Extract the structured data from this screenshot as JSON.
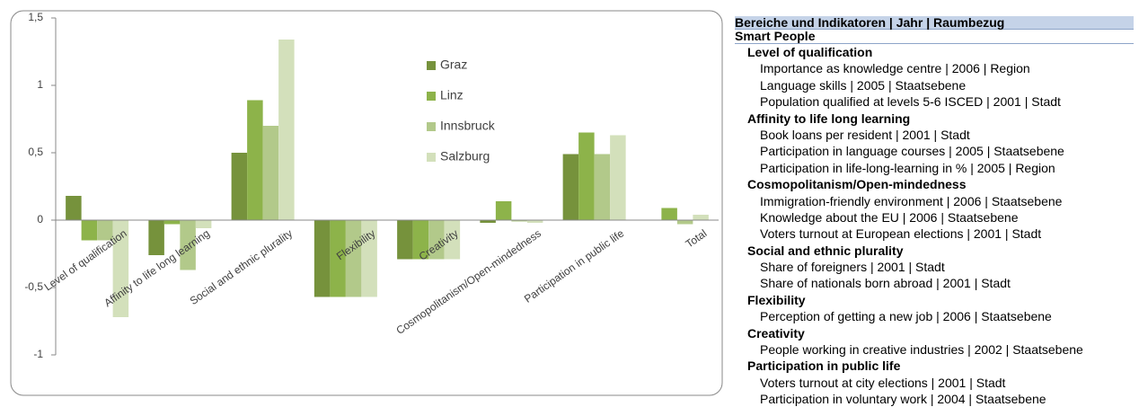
{
  "chart_data": {
    "type": "bar",
    "categories": [
      "Level of qualification",
      "Affinity to life long learning",
      "Social and ethnic plurality",
      "Flexibility",
      "Creativity",
      "Cosmopolitanism/Open-mindedness",
      "Participation in public life",
      "Total"
    ],
    "series": [
      {
        "name": "Graz",
        "color": "#76923c",
        "values": [
          0.18,
          -0.26,
          0.5,
          -0.57,
          -0.29,
          -0.02,
          0.49,
          0
        ]
      },
      {
        "name": "Linz",
        "color": "#8db34a",
        "values": [
          -0.15,
          -0.03,
          0.89,
          -0.57,
          -0.29,
          0.14,
          0.65,
          0.09
        ]
      },
      {
        "name": "Innsbruck",
        "color": "#b2c98a",
        "values": [
          -0.15,
          -0.37,
          0.7,
          -0.57,
          -0.29,
          -0.01,
          0.49,
          -0.03
        ]
      },
      {
        "name": "Salzburg",
        "color": "#d3e0bb",
        "values": [
          -0.72,
          -0.06,
          1.34,
          -0.57,
          -0.29,
          -0.02,
          0.63,
          0.04
        ]
      }
    ],
    "ylim": [
      -1,
      1.5
    ],
    "yticks": [
      {
        "value": -1,
        "label": "-1"
      },
      {
        "value": -0.5,
        "label": "-0,5"
      },
      0,
      {
        "value": 0.5,
        "label": "0,5"
      },
      1,
      {
        "value": 1.5,
        "label": "1,5"
      }
    ],
    "grid": false,
    "legend": "inside"
  },
  "sidebar": {
    "header": "Bereiche und Indikatoren | Jahr | Raumbezug",
    "section": "Smart People",
    "groups": [
      {
        "title": "Level of qualification",
        "items": [
          "Importance as knowledge centre | 2006 | Region",
          "Language skills | 2005 | Staatsebene",
          "Population qualified at levels 5-6 ISCED | 2001 | Stadt"
        ]
      },
      {
        "title": "Affinity to life long learning",
        "items": [
          "Book loans per resident | 2001 | Stadt",
          "Participation in language courses | 2005 | Staatsebene",
          "Participation in life-long-learning in % | 2005 | Region"
        ]
      },
      {
        "title": "Cosmopolitanism/Open-mindedness",
        "items": [
          "Immigration-friendly environment | 2006 | Staatsebene",
          "Knowledge about the EU | 2006 | Staatsebene",
          "Voters turnout at European elections | 2001 | Stadt"
        ]
      },
      {
        "title": "Social and ethnic plurality",
        "items": [
          "Share of foreigners | 2001 | Stadt",
          "Share of nationals born abroad | 2001 | Stadt"
        ]
      },
      {
        "title": "Flexibility",
        "items": [
          "Perception of getting a new job | 2006 | Staatsebene"
        ]
      },
      {
        "title": "Creativity",
        "items": [
          "People working in creative industries | 2002 | Staatsebene"
        ]
      },
      {
        "title": "Participation in public life",
        "items": [
          "Voters turnout at city elections | 2001 | Stadt",
          "Participation in voluntary work | 2004 | Staatsebene"
        ]
      }
    ]
  }
}
